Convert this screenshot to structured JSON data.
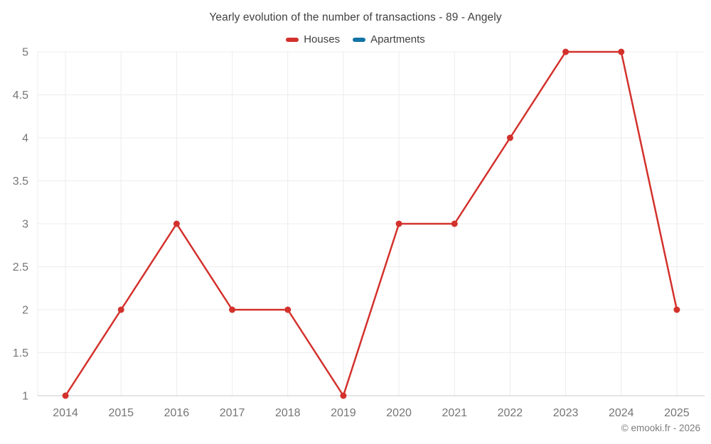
{
  "header": {
    "title": "Yearly evolution of the number of transactions - 89 - Angely"
  },
  "footer": {
    "credit": "© emooki.fr - 2026"
  },
  "colors": {
    "houses": "#d3312c",
    "apartments": "#1274a5",
    "grid": "#ececec",
    "axis": "#c9c9c9",
    "title_text": "#404040",
    "axis_text": "#757575",
    "footer_text": "#7d7d7d",
    "background": "#ffffff"
  },
  "chart_data": {
    "type": "line",
    "title": "Yearly evolution of the number of transactions - 89 - Angely",
    "categories": [
      "2014",
      "2015",
      "2016",
      "2017",
      "2018",
      "2019",
      "2020",
      "2021",
      "2022",
      "2023",
      "2024",
      "2025"
    ],
    "series": [
      {
        "name": "Houses",
        "color": "#d3312c",
        "values": [
          1,
          2,
          3,
          2,
          2,
          1,
          3,
          3,
          4,
          5,
          5,
          2
        ]
      },
      {
        "name": "Apartments",
        "color": "#1274a5",
        "values": []
      }
    ],
    "xlabel": "",
    "ylabel": "",
    "ylim": [
      1,
      5
    ],
    "y_ticks": [
      "1",
      "1.5",
      "2",
      "2.5",
      "3",
      "3.5",
      "4",
      "4.5",
      "5"
    ],
    "grid": "on",
    "legend_position": "top",
    "marker": "circle"
  }
}
